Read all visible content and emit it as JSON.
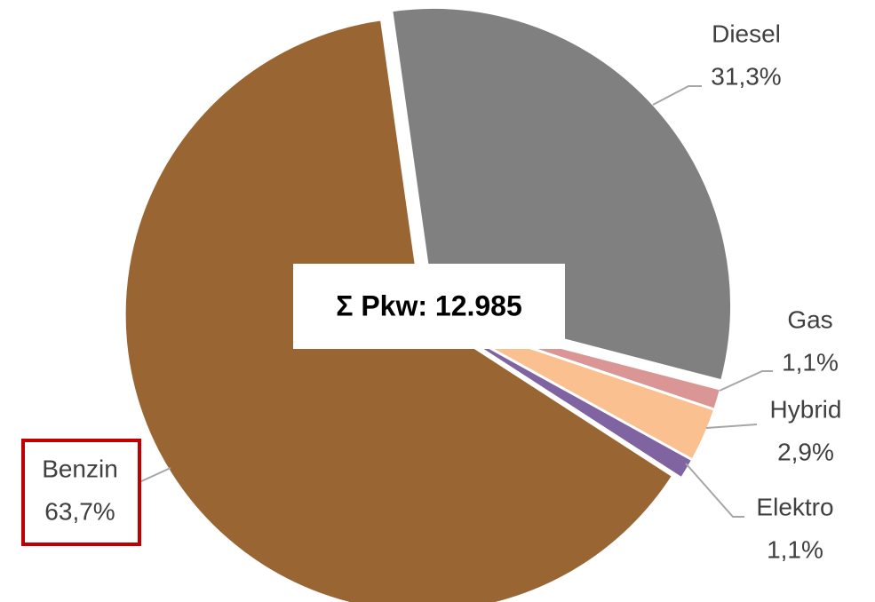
{
  "chart_data": {
    "type": "pie",
    "annotation": "Σ Pkw: 12.985",
    "categories": [
      "Diesel",
      "Gas",
      "Hybrid",
      "Elektro",
      "Benzin"
    ],
    "values": [
      31.3,
      1.1,
      2.9,
      1.1,
      63.7
    ],
    "value_labels": [
      "31,3%",
      "1,1%",
      "2,9%",
      "1,1%",
      "63,7%"
    ],
    "colors": [
      "#808080",
      "#d99694",
      "#fac090",
      "#8064a2",
      "#996633"
    ]
  }
}
